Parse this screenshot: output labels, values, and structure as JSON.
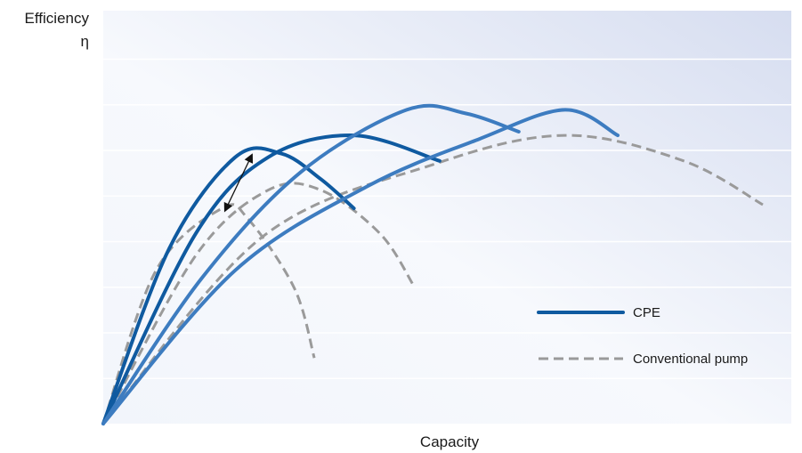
{
  "chart_data": {
    "type": "line",
    "ylabel": "Efficiency",
    "ylabel_symbol": "η",
    "xlabel": "Capacity",
    "xlim": [
      0,
      100
    ],
    "ylim": [
      0,
      100
    ],
    "grid": "horizontal",
    "legend": {
      "placement": "bottom-right",
      "entries": [
        {
          "label": "CPE",
          "style": "solid",
          "color": "#0f5aa0"
        },
        {
          "label": "Conventional pump",
          "style": "dashed",
          "color": "#9a9a9a"
        }
      ]
    },
    "colors": {
      "cpe": "#0f5aa0",
      "cpe_light": "#3d7cc0",
      "conventional": "#9a9a9a",
      "background_light": "#f2f5fb",
      "background_dark": "#d6ddf0",
      "grid": "#ffffff"
    },
    "series": [
      {
        "group": "CPE",
        "points": [
          [
            0,
            0
          ],
          [
            10,
            48
          ],
          [
            20,
            73
          ],
          [
            27,
            74
          ],
          [
            33,
            67
          ],
          [
            38,
            59
          ]
        ]
      },
      {
        "group": "CPE",
        "points": [
          [
            0,
            0
          ],
          [
            14,
            52
          ],
          [
            25,
            73
          ],
          [
            38,
            79
          ],
          [
            51,
            72
          ]
        ]
      },
      {
        "group": "CPE",
        "points": [
          [
            0,
            0
          ],
          [
            15,
            40
          ],
          [
            30,
            69
          ],
          [
            46,
            86
          ],
          [
            55,
            85
          ],
          [
            63,
            80
          ]
        ]
      },
      {
        "group": "CPE",
        "points": [
          [
            0,
            0
          ],
          [
            20,
            42
          ],
          [
            40,
            65
          ],
          [
            57,
            78
          ],
          [
            70,
            86
          ],
          [
            78,
            79
          ]
        ]
      },
      {
        "group": "Conventional pump",
        "points": [
          [
            0,
            0
          ],
          [
            8,
            42
          ],
          [
            18,
            59
          ],
          [
            22,
            56
          ],
          [
            29,
            37
          ],
          [
            32,
            18
          ]
        ]
      },
      {
        "group": "Conventional pump",
        "points": [
          [
            0,
            0
          ],
          [
            14,
            46
          ],
          [
            25,
            64
          ],
          [
            33,
            64
          ],
          [
            42,
            52
          ],
          [
            47,
            38
          ]
        ]
      },
      {
        "group": "Conventional pump",
        "points": [
          [
            0,
            0
          ],
          [
            24,
            51
          ],
          [
            50,
            71
          ],
          [
            70,
            79
          ],
          [
            88,
            72
          ],
          [
            100,
            60
          ]
        ]
      }
    ],
    "annotation": {
      "type": "double-arrow",
      "from": [
        18.5,
        58.5
      ],
      "to": [
        22.5,
        73.5
      ]
    }
  }
}
